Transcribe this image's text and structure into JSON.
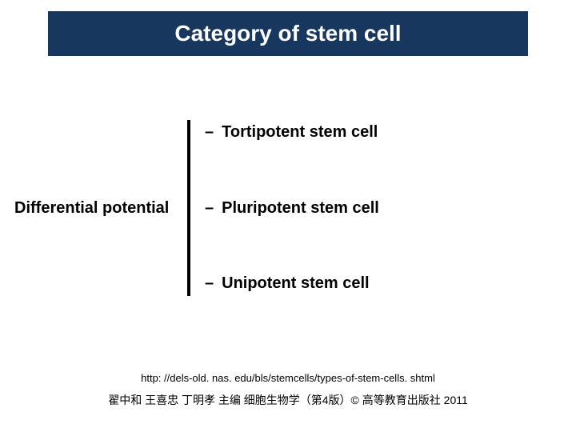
{
  "title": "Category of stem cell",
  "left_label": "Differential potential",
  "items": [
    "Tortipotent stem cell",
    "Pluripotent stem cell",
    "Unipotent stem cell"
  ],
  "url": "http: //dels-old. nas. edu/bls/stemcells/types-of-stem-cells. shtml",
  "footer": "翟中和 王喜忠 丁明孝 主编 细胞生物学（第4版）© 高等教育出版社  2011",
  "colors": {
    "title_bg": "#17375e",
    "title_text": "#ffffff",
    "body_text": "#000000",
    "background": "#ffffff",
    "divider": "#000000"
  },
  "layout": {
    "slide_width": 720,
    "slide_height": 540,
    "title_fontsize": 28,
    "body_fontsize": 20,
    "url_fontsize": 13,
    "footer_fontsize": 14,
    "divider_width": 4,
    "divider_height": 220
  }
}
